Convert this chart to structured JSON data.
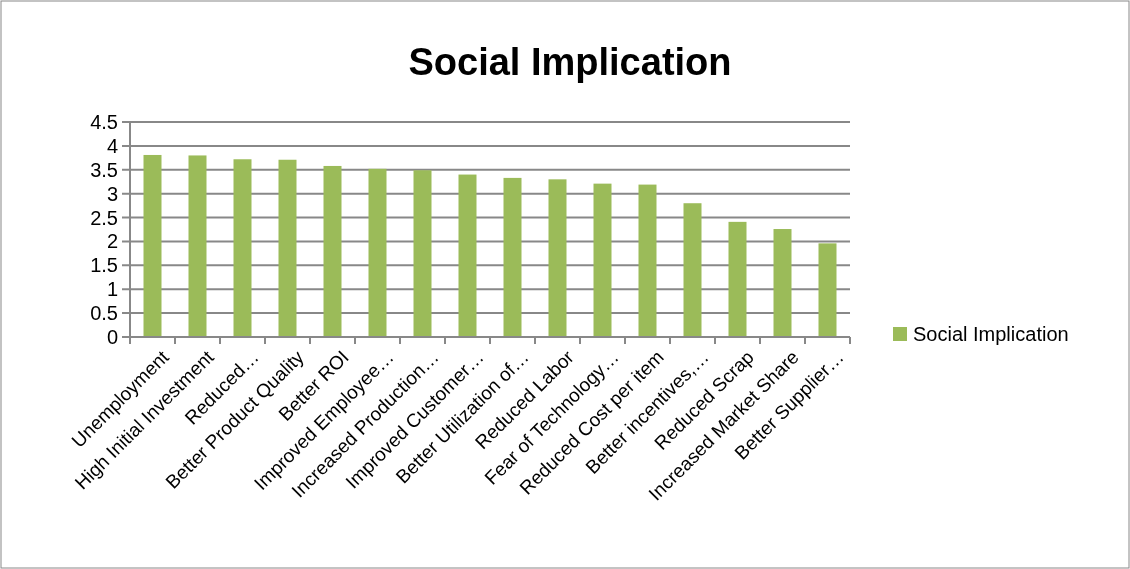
{
  "chart_data": {
    "type": "bar",
    "title": "Social Implication",
    "categories": [
      "Unemployment",
      "High Initial Investment",
      "Reduced…",
      "Better Product Quality",
      "Better ROI",
      "Improved Employee…",
      "Increased Production…",
      "Improved Customer…",
      "Better Utilization of…",
      "Reduced Labor",
      "Fear of Technology…",
      "Reduced Cost per item",
      "Better incentives,…",
      "Reduced Scrap",
      "Increased Market Share",
      "Better Supplier…"
    ],
    "series": [
      {
        "name": "Social Implication",
        "color": "#9bbb59",
        "values": [
          3.81,
          3.8,
          3.72,
          3.71,
          3.58,
          3.52,
          3.49,
          3.4,
          3.33,
          3.3,
          3.21,
          3.19,
          2.8,
          2.41,
          2.26,
          1.96
        ]
      }
    ],
    "ylim": [
      0,
      4.5
    ],
    "yticks": [
      0,
      {
        "value": 0.5,
        "label": "0.5"
      },
      1,
      {
        "value": 1.5,
        "label": "1.5"
      },
      2,
      {
        "value": 2.5,
        "label": "2.5"
      },
      3,
      {
        "value": 3.5,
        "label": "3.5"
      },
      4,
      {
        "value": 4.5,
        "label": "4.5"
      }
    ],
    "grid": "y",
    "legend": "right"
  }
}
